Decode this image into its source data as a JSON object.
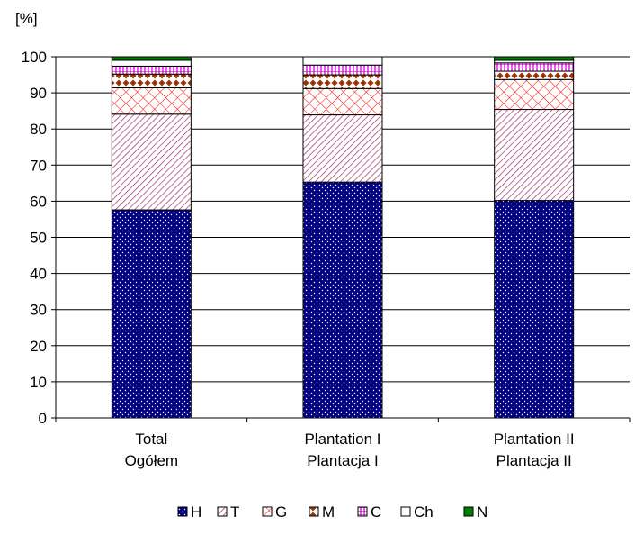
{
  "chart_data": {
    "type": "bar",
    "stacked": true,
    "unit_label": "[%]",
    "categories": [
      [
        "Total",
        "Ogółem"
      ],
      [
        "Plantation I",
        "Plantacja I"
      ],
      [
        "Plantation II",
        "Plantacja II"
      ]
    ],
    "ylim": [
      0,
      100
    ],
    "yticks": [
      0,
      10,
      20,
      30,
      40,
      50,
      60,
      70,
      80,
      90,
      100
    ],
    "grid": true,
    "legend_position": "bottom",
    "series": [
      {
        "name": "H",
        "color": "#000080",
        "pattern": "dots",
        "values": [
          57.6,
          65.3,
          60.2
        ]
      },
      {
        "name": "T",
        "color": "#993366",
        "pattern": "diagonal",
        "values": [
          26.5,
          18.6,
          25.2
        ]
      },
      {
        "name": "G",
        "color": "#ff0000",
        "pattern": "crosshatch",
        "values": [
          7.3,
          7.3,
          8.3
        ]
      },
      {
        "name": "M",
        "color": "#993300",
        "pattern": "diamonds",
        "values": [
          3.8,
          3.8,
          2.3
        ]
      },
      {
        "name": "C",
        "color": "#cc00cc",
        "pattern": "vertical",
        "values": [
          2.2,
          2.7,
          2.3
        ]
      },
      {
        "name": "Ch",
        "color": "#ffffff",
        "pattern": "none",
        "values": [
          1.6,
          2.3,
          0.7
        ]
      },
      {
        "name": "N",
        "color": "#008000",
        "pattern": "solid",
        "values": [
          1.0,
          0.0,
          1.0
        ]
      }
    ]
  }
}
